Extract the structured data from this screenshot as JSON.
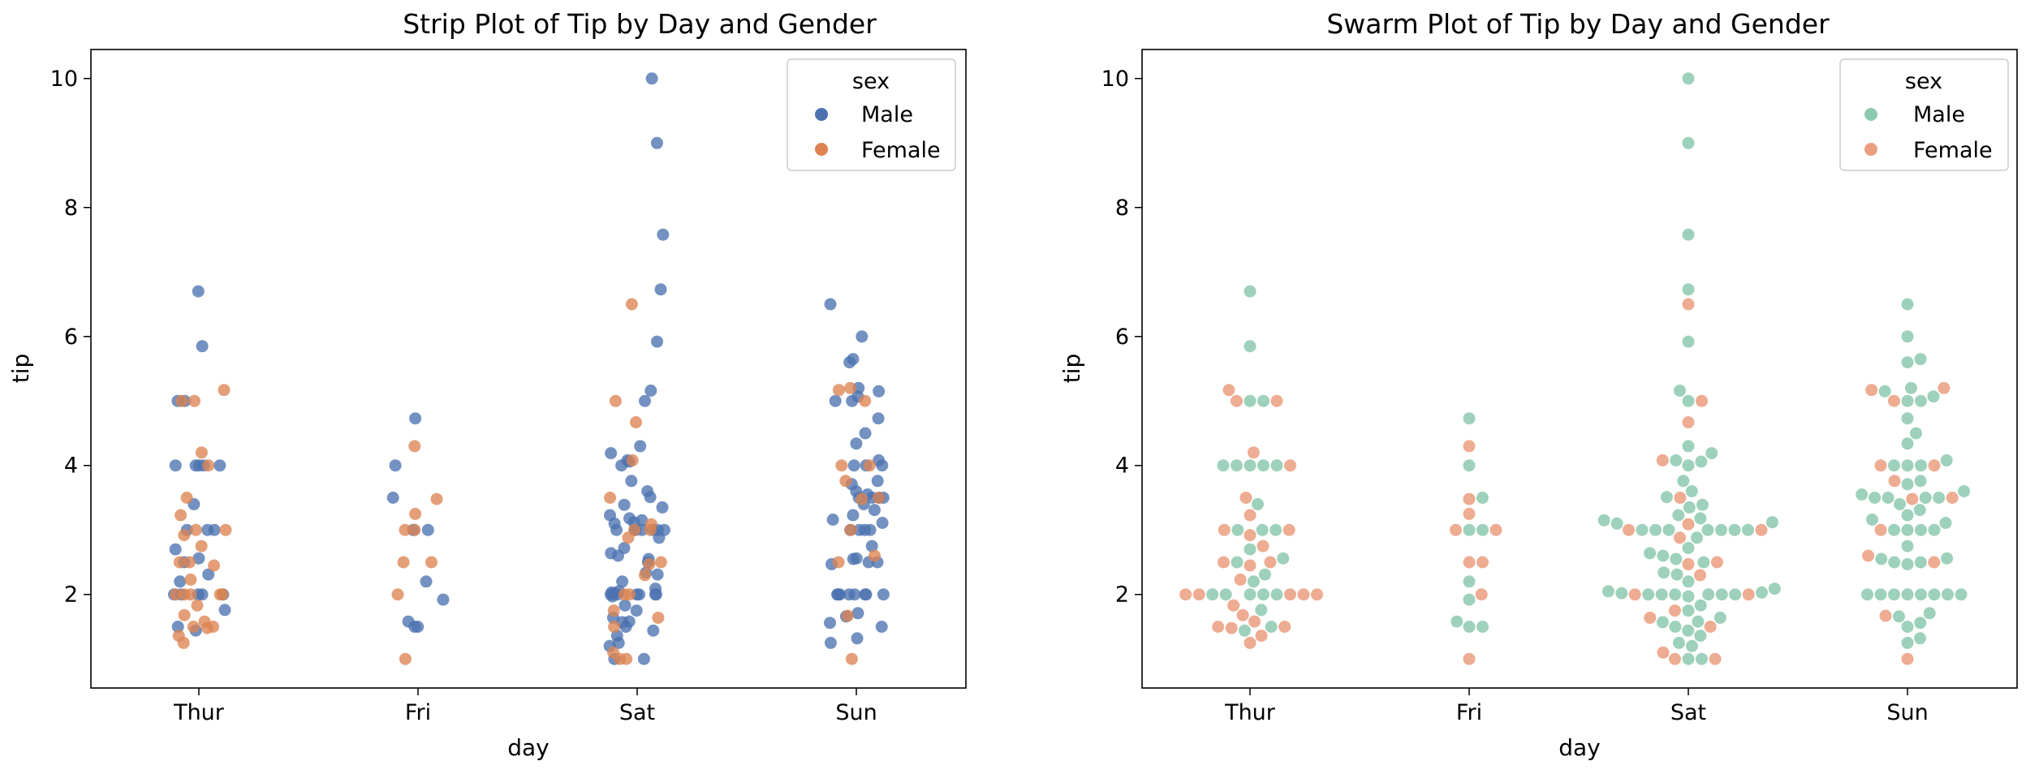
{
  "palette": {
    "strip": {
      "Male": "#4c72b0",
      "Female": "#dd8452"
    },
    "swarm": {
      "Male": "#8dc9af",
      "Female": "#eb9e7f"
    }
  },
  "chart_data": [
    {
      "type": "scatter",
      "variant": "strip",
      "title": "Strip Plot of Tip by Day and Gender",
      "xlabel": "day",
      "ylabel": "tip",
      "categories": [
        "Thur",
        "Fri",
        "Sat",
        "Sun"
      ],
      "yticks": [
        2,
        4,
        6,
        8,
        10
      ],
      "ylim": [
        0.55,
        10.45
      ],
      "legend": {
        "title": "sex",
        "entries": [
          "Male",
          "Female"
        ],
        "position": "top-right"
      },
      "series": [
        {
          "name": "Male",
          "points": {
            "Thur": [
              6.7,
              5.85,
              5.0,
              5.0,
              4.0,
              4.0,
              4.0,
              4.0,
              4.0,
              3.4,
              3.0,
              3.0,
              3.0,
              2.7,
              2.56,
              2.5,
              2.31,
              2.2,
              2.0,
              2.0,
              2.0,
              2.0,
              2.0,
              1.76,
              1.5,
              1.44
            ],
            "Fri": [
              4.73,
              4.0,
              3.5,
              3.0,
              3.0,
              2.2,
              1.92,
              1.58,
              1.5,
              1.5
            ],
            "Sat": [
              10.0,
              9.0,
              7.58,
              6.73,
              5.92,
              5.16,
              5.0,
              4.3,
              4.19,
              4.08,
              4.06,
              4.0,
              3.76,
              3.6,
              3.51,
              3.39,
              3.35,
              3.23,
              3.18,
              3.15,
              3.12,
              3.1,
              3.0,
              3.0,
              3.0,
              3.0,
              3.0,
              3.0,
              3.0,
              2.88,
              2.72,
              2.64,
              2.6,
              2.55,
              2.5,
              2.34,
              2.31,
              2.2,
              2.09,
              2.05,
              2.03,
              2.02,
              2.0,
              2.0,
              2.0,
              2.0,
              2.0,
              2.0,
              1.97,
              1.83,
              1.75,
              1.64,
              1.58,
              1.57,
              1.5,
              1.44,
              1.36,
              1.25,
              1.2,
              1.0,
              1.0
            ],
            "Sun": [
              6.5,
              6.0,
              5.65,
              5.6,
              5.2,
              5.15,
              5.07,
              5.0,
              5.0,
              4.73,
              4.5,
              4.34,
              4.08,
              4.0,
              4.0,
              4.0,
              3.76,
              3.71,
              3.6,
              3.55,
              3.5,
              3.5,
              3.5,
              3.5,
              3.4,
              3.31,
              3.23,
              3.16,
              3.11,
              3.0,
              3.0,
              3.0,
              3.0,
              2.75,
              2.56,
              2.55,
              2.5,
              2.5,
              2.47,
              2.0,
              2.0,
              2.0,
              2.0,
              2.0,
              2.0,
              2.0,
              2.0,
              1.71,
              1.66,
              1.56,
              1.5,
              1.32,
              1.25
            ]
          }
        },
        {
          "name": "Female",
          "points": {
            "Thur": [
              5.17,
              5.0,
              5.0,
              4.2,
              4.0,
              3.5,
              3.23,
              3.0,
              3.0,
              2.92,
              2.75,
              2.5,
              2.5,
              2.45,
              2.23,
              2.0,
              2.0,
              2.0,
              2.0,
              2.0,
              1.83,
              1.68,
              1.58,
              1.5,
              1.5,
              1.48,
              1.36,
              1.25
            ],
            "Fri": [
              4.3,
              3.48,
              3.25,
              3.0,
              3.0,
              2.5,
              2.5,
              2.0,
              1.0
            ],
            "Sat": [
              6.5,
              5.0,
              4.67,
              4.08,
              3.5,
              3.09,
              3.0,
              3.0,
              2.88,
              2.5,
              2.47,
              2.3,
              2.0,
              2.0,
              1.75,
              1.64,
              1.5,
              1.1,
              1.0,
              1.0
            ],
            "Sun": [
              5.2,
              5.17,
              5.0,
              4.0,
              4.0,
              3.76,
              3.5,
              3.48,
              3.0,
              2.6,
              2.5,
              1.67,
              1.0
            ]
          }
        }
      ]
    },
    {
      "type": "scatter",
      "variant": "swarm",
      "title": "Swarm Plot of Tip by Day and Gender",
      "xlabel": "day",
      "ylabel": "tip",
      "categories": [
        "Thur",
        "Fri",
        "Sat",
        "Sun"
      ],
      "yticks": [
        2,
        4,
        6,
        8,
        10
      ],
      "ylim": [
        0.55,
        10.45
      ],
      "legend": {
        "title": "sex",
        "entries": [
          "Male",
          "Female"
        ],
        "position": "top-right"
      },
      "series": [
        {
          "name": "Male",
          "points": {
            "Thur": [
              6.7,
              5.85,
              5.0,
              5.0,
              4.0,
              4.0,
              4.0,
              4.0,
              4.0,
              3.4,
              3.0,
              3.0,
              3.0,
              2.7,
              2.56,
              2.5,
              2.31,
              2.2,
              2.0,
              2.0,
              2.0,
              2.0,
              2.0,
              1.76,
              1.5,
              1.44
            ],
            "Fri": [
              4.73,
              4.0,
              3.5,
              3.0,
              3.0,
              2.2,
              1.92,
              1.58,
              1.5,
              1.5
            ],
            "Sat": [
              10.0,
              9.0,
              7.58,
              6.73,
              5.92,
              5.16,
              5.0,
              4.3,
              4.19,
              4.08,
              4.06,
              4.0,
              3.76,
              3.6,
              3.51,
              3.39,
              3.35,
              3.23,
              3.18,
              3.15,
              3.12,
              3.1,
              3.0,
              3.0,
              3.0,
              3.0,
              3.0,
              3.0,
              3.0,
              2.88,
              2.72,
              2.64,
              2.6,
              2.55,
              2.5,
              2.34,
              2.31,
              2.2,
              2.09,
              2.05,
              2.03,
              2.02,
              2.0,
              2.0,
              2.0,
              2.0,
              2.0,
              2.0,
              1.97,
              1.83,
              1.75,
              1.64,
              1.58,
              1.57,
              1.5,
              1.44,
              1.36,
              1.25,
              1.2,
              1.0,
              1.0
            ],
            "Sun": [
              6.5,
              6.0,
              5.65,
              5.6,
              5.2,
              5.15,
              5.07,
              5.0,
              5.0,
              4.73,
              4.5,
              4.34,
              4.08,
              4.0,
              4.0,
              4.0,
              3.76,
              3.71,
              3.6,
              3.55,
              3.5,
              3.5,
              3.5,
              3.5,
              3.4,
              3.31,
              3.23,
              3.16,
              3.11,
              3.0,
              3.0,
              3.0,
              3.0,
              2.75,
              2.56,
              2.55,
              2.5,
              2.5,
              2.47,
              2.0,
              2.0,
              2.0,
              2.0,
              2.0,
              2.0,
              2.0,
              2.0,
              1.71,
              1.66,
              1.56,
              1.5,
              1.32,
              1.25
            ]
          }
        },
        {
          "name": "Female",
          "points": {
            "Thur": [
              5.17,
              5.0,
              5.0,
              4.2,
              4.0,
              3.5,
              3.23,
              3.0,
              3.0,
              2.92,
              2.75,
              2.5,
              2.5,
              2.45,
              2.23,
              2.0,
              2.0,
              2.0,
              2.0,
              2.0,
              1.83,
              1.68,
              1.58,
              1.5,
              1.5,
              1.48,
              1.36,
              1.25
            ],
            "Fri": [
              4.3,
              3.48,
              3.25,
              3.0,
              3.0,
              2.5,
              2.5,
              2.0,
              1.0
            ],
            "Sat": [
              6.5,
              5.0,
              4.67,
              4.08,
              3.5,
              3.09,
              3.0,
              3.0,
              2.88,
              2.5,
              2.47,
              2.3,
              2.0,
              2.0,
              1.75,
              1.64,
              1.5,
              1.1,
              1.0,
              1.0
            ],
            "Sun": [
              5.2,
              5.17,
              5.0,
              4.0,
              4.0,
              3.76,
              3.5,
              3.48,
              3.0,
              2.6,
              2.5,
              1.67,
              1.0
            ]
          }
        }
      ]
    }
  ]
}
